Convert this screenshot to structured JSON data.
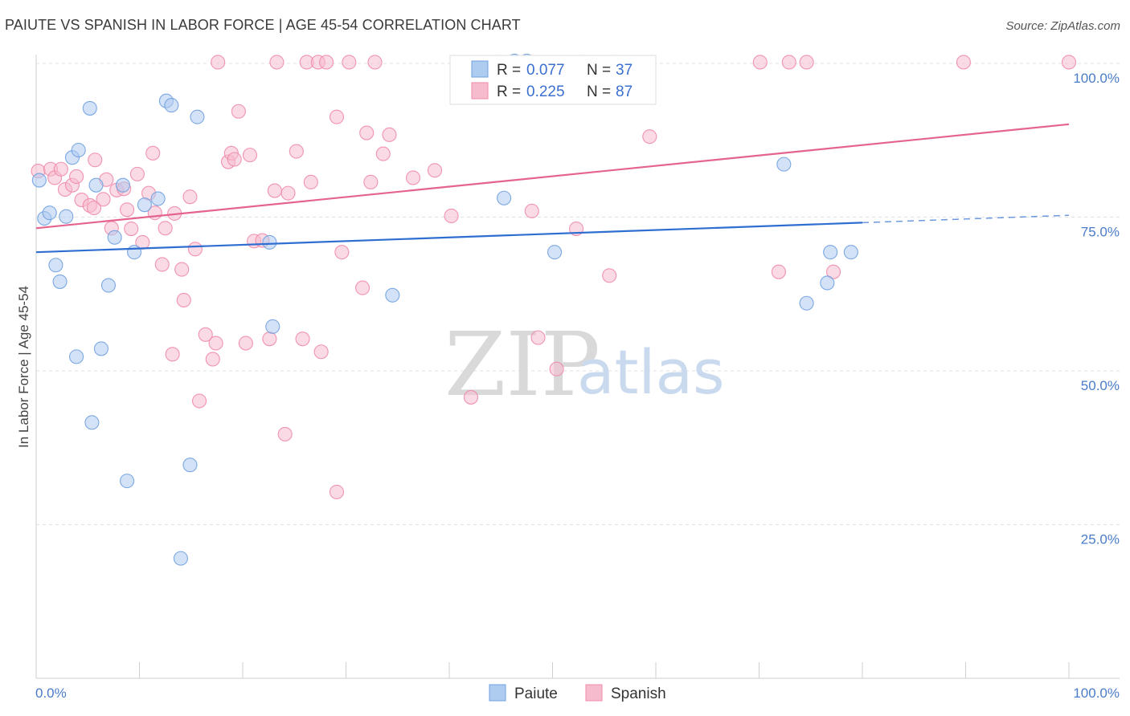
{
  "title": "PAIUTE VS SPANISH IN LABOR FORCE | AGE 45-54 CORRELATION CHART",
  "source": "Source: ZipAtlas.com",
  "chart_data": {
    "type": "scatter",
    "title": "PAIUTE VS SPANISH IN LABOR FORCE | AGE 45-54 CORRELATION CHART",
    "ylabel": "In Labor Force | Age 45-54",
    "xlim": [
      0,
      100
    ],
    "ylim": [
      0,
      103
    ],
    "x_tick_labels": [
      "0.0%",
      "100.0%"
    ],
    "y_ticks": [
      25,
      50,
      75,
      100
    ],
    "y_tick_labels": [
      "25.0%",
      "50.0%",
      "75.0%",
      "100.0%"
    ],
    "grid": true,
    "legend": {
      "position": "top-center",
      "entries": [
        {
          "r_label": "R =",
          "r_value": "0.077",
          "n_label": "N =",
          "n_value": "37"
        },
        {
          "r_label": "R =",
          "r_value": "0.225",
          "n_label": "N =",
          "n_value": "87"
        }
      ]
    },
    "watermark": {
      "zip": "ZIP",
      "atlas": "atlas"
    },
    "series": [
      {
        "name": "Paiute",
        "color": "#6fa0e0",
        "fill": "#aecbf0",
        "trend": {
          "x0": 0,
          "y0": 69.3,
          "x1": 80,
          "y1": 74.1,
          "dash_to": 100,
          "dash_y": 75.3,
          "color": "#2f6ed1"
        },
        "points": [
          [
            0.3,
            81
          ],
          [
            0.8,
            74.8
          ],
          [
            1.3,
            75.7
          ],
          [
            1.9,
            67.2
          ],
          [
            2.3,
            64.5
          ],
          [
            2.9,
            75.1
          ],
          [
            3.5,
            84.7
          ],
          [
            4.1,
            85.9
          ],
          [
            5.2,
            92.7
          ],
          [
            5.8,
            80.2
          ],
          [
            3.9,
            52.3
          ],
          [
            6.3,
            53.6
          ],
          [
            5.4,
            41.6
          ],
          [
            7,
            63.9
          ],
          [
            7.6,
            71.7
          ],
          [
            8.4,
            80.2
          ],
          [
            8.8,
            32.1
          ],
          [
            9.5,
            69.3
          ],
          [
            10.5,
            77
          ],
          [
            11.8,
            78
          ],
          [
            12.6,
            93.9
          ],
          [
            13.1,
            93.2
          ],
          [
            14,
            19.5
          ],
          [
            14.9,
            34.7
          ],
          [
            15.6,
            91.3
          ],
          [
            22.6,
            70.9
          ],
          [
            22.9,
            57.2
          ],
          [
            34.5,
            62.3
          ],
          [
            45.3,
            78.1
          ],
          [
            50.2,
            69.3
          ],
          [
            72.4,
            83.6
          ],
          [
            74.6,
            61
          ],
          [
            76.6,
            64.3
          ],
          [
            76.9,
            69.3
          ],
          [
            78.9,
            69.3
          ],
          [
            46.3,
            100.4
          ],
          [
            47.5,
            100.4
          ]
        ]
      },
      {
        "name": "Spanish",
        "color": "#f08aa8",
        "fill": "#f6bccd",
        "trend": {
          "x0": 0,
          "y0": 73.2,
          "x1": 100,
          "y1": 90.1,
          "color": "#e4648d"
        },
        "points": [
          [
            0.2,
            82.5
          ],
          [
            1.4,
            82.8
          ],
          [
            1.8,
            81.4
          ],
          [
            2.4,
            82.8
          ],
          [
            2.8,
            79.5
          ],
          [
            3.5,
            80.2
          ],
          [
            3.9,
            81.6
          ],
          [
            4.4,
            77.8
          ],
          [
            5.2,
            76.9
          ],
          [
            5.6,
            76.5
          ],
          [
            5.7,
            84.3
          ],
          [
            6.5,
            77.9
          ],
          [
            6.8,
            81.1
          ],
          [
            7.3,
            73.2
          ],
          [
            7.8,
            79.4
          ],
          [
            8.5,
            79.6
          ],
          [
            8.8,
            76.2
          ],
          [
            9.2,
            73.1
          ],
          [
            9.8,
            82
          ],
          [
            10.3,
            70.9
          ],
          [
            10.9,
            78.9
          ],
          [
            11.3,
            85.4
          ],
          [
            11.5,
            75.7
          ],
          [
            12.2,
            67.3
          ],
          [
            12.5,
            73.2
          ],
          [
            13.2,
            52.7
          ],
          [
            13.4,
            75.6
          ],
          [
            14.1,
            66.5
          ],
          [
            14.3,
            61.5
          ],
          [
            14.9,
            78.3
          ],
          [
            15.4,
            69.8
          ],
          [
            15.8,
            45.1
          ],
          [
            16.4,
            55.9
          ],
          [
            17.1,
            51.9
          ],
          [
            17.4,
            54.5
          ],
          [
            17.6,
            100.2
          ],
          [
            18.6,
            84
          ],
          [
            18.9,
            85.4
          ],
          [
            19.2,
            84.4
          ],
          [
            19.6,
            92.2
          ],
          [
            20.7,
            85.1
          ],
          [
            20.3,
            54.5
          ],
          [
            21.1,
            71.1
          ],
          [
            21.9,
            71.2
          ],
          [
            22.6,
            55.2
          ],
          [
            23.1,
            79.3
          ],
          [
            23.3,
            100.2
          ],
          [
            24.1,
            39.7
          ],
          [
            24.4,
            78.9
          ],
          [
            25.2,
            85.7
          ],
          [
            25.8,
            55.2
          ],
          [
            26.2,
            100.2
          ],
          [
            26.6,
            80.7
          ],
          [
            27.3,
            100.2
          ],
          [
            27.6,
            53.1
          ],
          [
            28.1,
            100.2
          ],
          [
            29.1,
            91.3
          ],
          [
            29.6,
            69.3
          ],
          [
            30.3,
            100.2
          ],
          [
            29.1,
            30.3
          ],
          [
            31.6,
            63.5
          ],
          [
            32,
            88.7
          ],
          [
            32.4,
            80.7
          ],
          [
            32.8,
            100.2
          ],
          [
            33.6,
            85.3
          ],
          [
            34.2,
            88.4
          ],
          [
            36.5,
            81.4
          ],
          [
            38.6,
            82.6
          ],
          [
            40.2,
            75.2
          ],
          [
            42.1,
            45.7
          ],
          [
            44.6,
            100.2
          ],
          [
            48,
            76
          ],
          [
            48,
            100.2
          ],
          [
            48.6,
            55.4
          ],
          [
            50.4,
            50.3
          ],
          [
            52.3,
            73.1
          ],
          [
            52.7,
            100.2
          ],
          [
            55.5,
            65.5
          ],
          [
            55.9,
            100.2
          ],
          [
            59.4,
            88.1
          ],
          [
            70.1,
            100.2
          ],
          [
            71.9,
            66.1
          ],
          [
            72.9,
            100.2
          ],
          [
            74.6,
            100.2
          ],
          [
            77.2,
            66.1
          ],
          [
            89.8,
            100.2
          ],
          [
            100,
            100.2
          ]
        ]
      }
    ]
  }
}
